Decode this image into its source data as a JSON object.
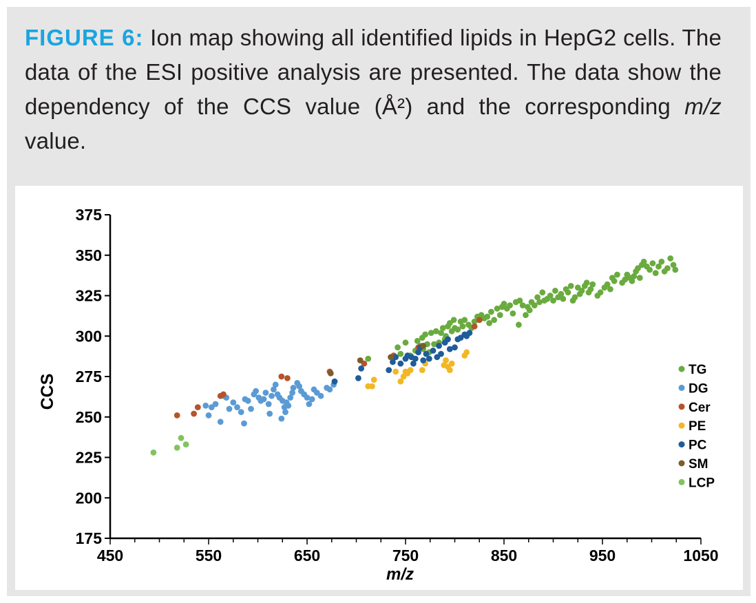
{
  "caption": {
    "label": "FIGURE 6:",
    "text": " Ion map showing all identified lipids in HepG2 cells. The data of the ESI positive analysis are presented. The data show the dependency of the CCS value (Å²) and the corresponding ",
    "italic": "m/z",
    "tail": " value."
  },
  "chart_data": {
    "type": "scatter",
    "title": "",
    "xlabel": "m/z",
    "ylabel": "CCS",
    "xlim": [
      450,
      1050
    ],
    "ylim": [
      175,
      375
    ],
    "xticks": [
      450,
      550,
      650,
      750,
      850,
      950,
      1050
    ],
    "yticks": [
      175,
      200,
      225,
      250,
      275,
      300,
      325,
      350,
      375
    ],
    "grid": false,
    "legend_position": "right",
    "series": [
      {
        "name": "TG",
        "color": "#6aab3f",
        "points": [
          [
            712,
            286
          ],
          [
            742,
            293
          ],
          [
            745,
            289
          ],
          [
            750,
            296
          ],
          [
            755,
            288
          ],
          [
            760,
            291
          ],
          [
            762,
            297
          ],
          [
            765,
            294
          ],
          [
            767,
            299
          ],
          [
            768,
            292
          ],
          [
            770,
            301
          ],
          [
            772,
            295
          ],
          [
            774,
            290
          ],
          [
            776,
            302
          ],
          [
            779,
            295
          ],
          [
            781,
            303
          ],
          [
            784,
            296
          ],
          [
            786,
            302
          ],
          [
            788,
            305
          ],
          [
            790,
            298
          ],
          [
            791,
            300
          ],
          [
            793,
            306
          ],
          [
            795,
            308
          ],
          [
            797,
            303
          ],
          [
            799,
            310
          ],
          [
            800,
            305
          ],
          [
            803,
            304
          ],
          [
            806,
            309
          ],
          [
            808,
            306
          ],
          [
            810,
            310
          ],
          [
            814,
            307
          ],
          [
            817,
            305
          ],
          [
            820,
            309
          ],
          [
            823,
            312
          ],
          [
            825,
            310
          ],
          [
            827,
            313
          ],
          [
            830,
            311
          ],
          [
            833,
            312
          ],
          [
            835,
            308
          ],
          [
            837,
            315
          ],
          [
            840,
            310
          ],
          [
            843,
            317
          ],
          [
            846,
            313
          ],
          [
            848,
            318
          ],
          [
            850,
            320
          ],
          [
            853,
            317
          ],
          [
            856,
            319
          ],
          [
            859,
            314
          ],
          [
            862,
            321
          ],
          [
            865,
            307
          ],
          [
            866,
            322
          ],
          [
            869,
            319
          ],
          [
            872,
            313
          ],
          [
            874,
            318
          ],
          [
            876,
            316
          ],
          [
            878,
            321
          ],
          [
            881,
            319
          ],
          [
            884,
            324
          ],
          [
            886,
            321
          ],
          [
            889,
            327
          ],
          [
            891,
            322
          ],
          [
            894,
            323
          ],
          [
            897,
            325
          ],
          [
            900,
            322
          ],
          [
            902,
            328
          ],
          [
            905,
            324
          ],
          [
            908,
            326
          ],
          [
            910,
            323
          ],
          [
            913,
            329
          ],
          [
            915,
            327
          ],
          [
            918,
            331
          ],
          [
            920,
            322
          ],
          [
            922,
            324
          ],
          [
            925,
            330
          ],
          [
            927,
            326
          ],
          [
            929,
            328
          ],
          [
            932,
            331
          ],
          [
            934,
            333
          ],
          [
            936,
            327
          ],
          [
            938,
            329
          ],
          [
            940,
            332
          ],
          [
            945,
            325
          ],
          [
            948,
            327
          ],
          [
            952,
            330
          ],
          [
            955,
            332
          ],
          [
            958,
            329
          ],
          [
            960,
            336
          ],
          [
            962,
            334
          ],
          [
            965,
            338
          ],
          [
            970,
            333
          ],
          [
            973,
            335
          ],
          [
            975,
            338
          ],
          [
            978,
            336
          ],
          [
            980,
            334
          ],
          [
            982,
            337
          ],
          [
            984,
            340
          ],
          [
            986,
            342
          ],
          [
            988,
            336
          ],
          [
            990,
            344
          ],
          [
            992,
            346
          ],
          [
            995,
            343
          ],
          [
            998,
            341
          ],
          [
            1001,
            345
          ],
          [
            1004,
            339
          ],
          [
            1007,
            343
          ],
          [
            1010,
            346
          ],
          [
            1013,
            340
          ],
          [
            1016,
            342
          ],
          [
            1019,
            348
          ],
          [
            1022,
            344
          ],
          [
            1024,
            341
          ]
        ]
      },
      {
        "name": "DG",
        "color": "#5b9bd5",
        "points": [
          [
            547,
            257
          ],
          [
            550,
            251
          ],
          [
            553,
            256
          ],
          [
            557,
            258
          ],
          [
            562,
            247
          ],
          [
            565,
            263
          ],
          [
            568,
            262
          ],
          [
            571,
            255
          ],
          [
            575,
            259
          ],
          [
            579,
            256
          ],
          [
            583,
            253
          ],
          [
            587,
            261
          ],
          [
            590,
            260
          ],
          [
            593,
            255
          ],
          [
            596,
            264
          ],
          [
            598,
            266
          ],
          [
            601,
            262
          ],
          [
            603,
            260
          ],
          [
            606,
            261
          ],
          [
            608,
            265
          ],
          [
            611,
            258
          ],
          [
            614,
            263
          ],
          [
            616,
            267
          ],
          [
            618,
            270
          ],
          [
            620,
            264
          ],
          [
            622,
            262
          ],
          [
            625,
            260
          ],
          [
            627,
            256
          ],
          [
            628,
            253
          ],
          [
            629,
            259
          ],
          [
            631,
            257
          ],
          [
            633,
            262
          ],
          [
            635,
            265
          ],
          [
            636,
            268
          ],
          [
            640,
            271
          ],
          [
            642,
            269
          ],
          [
            644,
            266
          ],
          [
            647,
            264
          ],
          [
            650,
            262
          ],
          [
            652,
            258
          ],
          [
            655,
            261
          ],
          [
            657,
            267
          ],
          [
            660,
            265
          ],
          [
            664,
            263
          ],
          [
            670,
            268
          ],
          [
            673,
            267
          ],
          [
            677,
            270
          ],
          [
            586,
            246
          ],
          [
            612,
            252
          ],
          [
            624,
            249
          ]
        ]
      },
      {
        "name": "Cer",
        "color": "#b5542b",
        "points": [
          [
            518,
            251
          ],
          [
            535,
            252
          ],
          [
            539,
            256
          ],
          [
            562,
            263
          ],
          [
            565,
            264
          ],
          [
            624,
            275
          ],
          [
            630,
            274
          ],
          [
            673,
            278
          ],
          [
            708,
            283
          ],
          [
            738,
            288
          ],
          [
            763,
            293
          ],
          [
            820,
            306
          ],
          [
            825,
            310
          ]
        ]
      },
      {
        "name": "PE",
        "color": "#f2b724",
        "points": [
          [
            712,
            269
          ],
          [
            716,
            269
          ],
          [
            718,
            273
          ],
          [
            740,
            278
          ],
          [
            745,
            272
          ],
          [
            748,
            275
          ],
          [
            750,
            278
          ],
          [
            752,
            277
          ],
          [
            755,
            279
          ],
          [
            767,
            279
          ],
          [
            770,
            283
          ],
          [
            789,
            282
          ],
          [
            791,
            285
          ],
          [
            793,
            281
          ],
          [
            795,
            279
          ],
          [
            797,
            283
          ],
          [
            810,
            288
          ],
          [
            812,
            290
          ]
        ]
      },
      {
        "name": "PC",
        "color": "#1f5c99",
        "points": [
          [
            678,
            272
          ],
          [
            702,
            274
          ],
          [
            705,
            280
          ],
          [
            733,
            279
          ],
          [
            737,
            284
          ],
          [
            740,
            287
          ],
          [
            745,
            283
          ],
          [
            750,
            286
          ],
          [
            752,
            288
          ],
          [
            756,
            287
          ],
          [
            758,
            283
          ],
          [
            760,
            286
          ],
          [
            763,
            290
          ],
          [
            765,
            293
          ],
          [
            768,
            285
          ],
          [
            771,
            289
          ],
          [
            774,
            286
          ],
          [
            778,
            291
          ],
          [
            782,
            287
          ],
          [
            784,
            294
          ],
          [
            786,
            289
          ],
          [
            790,
            296
          ],
          [
            793,
            298
          ],
          [
            795,
            292
          ],
          [
            800,
            293
          ],
          [
            803,
            298
          ],
          [
            806,
            299
          ],
          [
            810,
            301
          ],
          [
            812,
            300
          ],
          [
            815,
            302
          ]
        ]
      },
      {
        "name": "SM",
        "color": "#7e5c2b",
        "points": [
          [
            704,
            285
          ],
          [
            735,
            287
          ],
          [
            768,
            294
          ],
          [
            674,
            277
          ]
        ]
      },
      {
        "name": "LCP",
        "color": "#82c35f",
        "points": [
          [
            494,
            228
          ],
          [
            518,
            231
          ],
          [
            522,
            237
          ],
          [
            527,
            233
          ]
        ]
      }
    ]
  }
}
